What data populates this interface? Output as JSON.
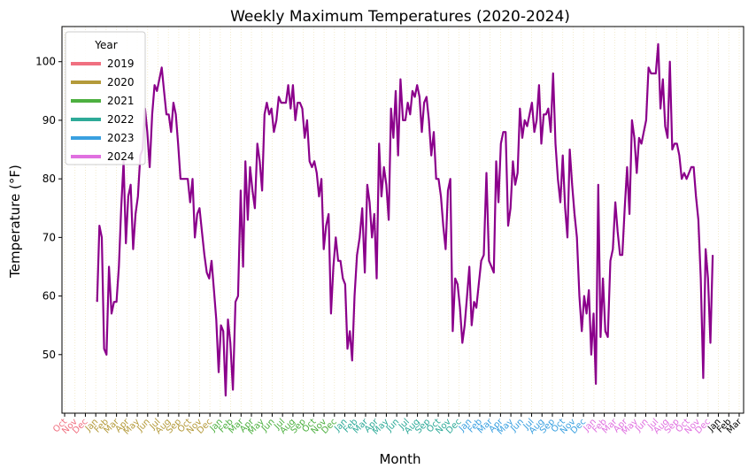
{
  "chart_data": {
    "type": "line",
    "title": "Weekly Maximum Temperatures (2020-2024)",
    "xlabel": "Month",
    "ylabel": "Temperature (°F)",
    "ylim": [
      40,
      106
    ],
    "yticks": [
      50,
      60,
      70,
      80,
      90,
      100
    ],
    "grid": "x-only (faint, dotted)",
    "line_color": "#8b008b",
    "legend": {
      "title": "Year",
      "placement": "top-left",
      "entries": [
        {
          "label": "2019",
          "color": "#f07080"
        },
        {
          "label": "2020",
          "color": "#b49a3a"
        },
        {
          "label": "2021",
          "color": "#4db040"
        },
        {
          "label": "2022",
          "color": "#2eaa98"
        },
        {
          "label": "2023",
          "color": "#3aa0e0"
        },
        {
          "label": "2024",
          "color": "#e070e0"
        }
      ]
    },
    "x_ticks": [
      {
        "label": "Oct",
        "year": "2019"
      },
      {
        "label": "Nov",
        "year": "2019"
      },
      {
        "label": "Dec",
        "year": "2019"
      },
      {
        "label": "Jan",
        "year": "2020"
      },
      {
        "label": "Feb",
        "year": "2020"
      },
      {
        "label": "Mar",
        "year": "2020"
      },
      {
        "label": "Apr",
        "year": "2020"
      },
      {
        "label": "May",
        "year": "2020"
      },
      {
        "label": "Jun",
        "year": "2020"
      },
      {
        "label": "Jul",
        "year": "2020"
      },
      {
        "label": "Aug",
        "year": "2020"
      },
      {
        "label": "Sep",
        "year": "2020"
      },
      {
        "label": "Oct",
        "year": "2020"
      },
      {
        "label": "Nov",
        "year": "2020"
      },
      {
        "label": "Dec",
        "year": "2020"
      },
      {
        "label": "Jan",
        "year": "2021"
      },
      {
        "label": "Feb",
        "year": "2021"
      },
      {
        "label": "Mar",
        "year": "2021"
      },
      {
        "label": "Apr",
        "year": "2021"
      },
      {
        "label": "May",
        "year": "2021"
      },
      {
        "label": "Jun",
        "year": "2021"
      },
      {
        "label": "Jul",
        "year": "2021"
      },
      {
        "label": "Aug",
        "year": "2021"
      },
      {
        "label": "Sep",
        "year": "2021"
      },
      {
        "label": "Oct",
        "year": "2021"
      },
      {
        "label": "Nov",
        "year": "2021"
      },
      {
        "label": "Dec",
        "year": "2021"
      },
      {
        "label": "Jan",
        "year": "2022"
      },
      {
        "label": "Feb",
        "year": "2022"
      },
      {
        "label": "Mar",
        "year": "2022"
      },
      {
        "label": "Apr",
        "year": "2022"
      },
      {
        "label": "May",
        "year": "2022"
      },
      {
        "label": "Jun",
        "year": "2022"
      },
      {
        "label": "Jul",
        "year": "2022"
      },
      {
        "label": "Aug",
        "year": "2022"
      },
      {
        "label": "Sep",
        "year": "2022"
      },
      {
        "label": "Oct",
        "year": "2022"
      },
      {
        "label": "Nov",
        "year": "2022"
      },
      {
        "label": "Dec",
        "year": "2022"
      },
      {
        "label": "Jan",
        "year": "2023"
      },
      {
        "label": "Feb",
        "year": "2023"
      },
      {
        "label": "Mar",
        "year": "2023"
      },
      {
        "label": "Apr",
        "year": "2023"
      },
      {
        "label": "May",
        "year": "2023"
      },
      {
        "label": "Jun",
        "year": "2023"
      },
      {
        "label": "Jul",
        "year": "2023"
      },
      {
        "label": "Aug",
        "year": "2023"
      },
      {
        "label": "Sep",
        "year": "2023"
      },
      {
        "label": "Oct",
        "year": "2023"
      },
      {
        "label": "Nov",
        "year": "2023"
      },
      {
        "label": "Dec",
        "year": "2023"
      },
      {
        "label": "Jan",
        "year": "2024"
      },
      {
        "label": "Feb",
        "year": "2024"
      },
      {
        "label": "Mar",
        "year": "2024"
      },
      {
        "label": "Apr",
        "year": "2024"
      },
      {
        "label": "May",
        "year": "2024"
      },
      {
        "label": "Jun",
        "year": "2024"
      },
      {
        "label": "Jul",
        "year": "2024"
      },
      {
        "label": "Aug",
        "year": "2024"
      },
      {
        "label": "Sep",
        "year": "2024"
      },
      {
        "label": "Oct",
        "year": "2024"
      },
      {
        "label": "Nov",
        "year": "2024"
      },
      {
        "label": "Dec",
        "year": "2024"
      },
      {
        "label": "Jan",
        "year": "2025"
      },
      {
        "label": "Feb",
        "year": "2025"
      },
      {
        "label": "Mar",
        "year": "2025"
      }
    ],
    "year_tick_colors": {
      "2019": "#f07080",
      "2020": "#b49a3a",
      "2021": "#4db040",
      "2022": "#2eaa98",
      "2023": "#3aa0e0",
      "2024": "#e070e0",
      "2025": "#000000"
    },
    "series": [
      {
        "color": "#8b008b",
        "x_start": "2020-01-05",
        "x_step_days": 7,
        "values": [
          59,
          72,
          70,
          51,
          50,
          65,
          57,
          59,
          59,
          65,
          75,
          83,
          69,
          77,
          79,
          68,
          74,
          77,
          84,
          85,
          92,
          88,
          82,
          91,
          96,
          95,
          97,
          99,
          95,
          91,
          91,
          88,
          93,
          91,
          86,
          80,
          80,
          80,
          80,
          76,
          80,
          70,
          74,
          75,
          71,
          67,
          64,
          63,
          66,
          61,
          56,
          47,
          55,
          54,
          43,
          56,
          52,
          44,
          59,
          60,
          78,
          65,
          83,
          73,
          82,
          78,
          75,
          86,
          83,
          78,
          91,
          93,
          91,
          92,
          88,
          90,
          94,
          93,
          93,
          93,
          96,
          92,
          96,
          90,
          93,
          93,
          92,
          87,
          90,
          83,
          82,
          83,
          81,
          77,
          80,
          68,
          72,
          74,
          57,
          65,
          70,
          66,
          66,
          63,
          62,
          51,
          54,
          49,
          60,
          67,
          70,
          75,
          64,
          79,
          76,
          70,
          74,
          63,
          86,
          77,
          82,
          79,
          73,
          92,
          87,
          95,
          84,
          97,
          90,
          90,
          93,
          91,
          95,
          94,
          96,
          94,
          88,
          93,
          94,
          90,
          84,
          88,
          80,
          80,
          77,
          72,
          68,
          78,
          80,
          54,
          63,
          62,
          58,
          52,
          55,
          60,
          65,
          55,
          59,
          58,
          62,
          66,
          67,
          81,
          66,
          65,
          64,
          83,
          76,
          86,
          88,
          88,
          72,
          75,
          83,
          79,
          81,
          92,
          87,
          90,
          89,
          91,
          93,
          88,
          90,
          96,
          86,
          91,
          91,
          92,
          88,
          98,
          86,
          80,
          76,
          84,
          75,
          70,
          85,
          79,
          74,
          70,
          60,
          54,
          60,
          57,
          61,
          50,
          57,
          45,
          79,
          53,
          63,
          54,
          53,
          66,
          68,
          76,
          71,
          67,
          67,
          75,
          82,
          74,
          90,
          87,
          81,
          87,
          86,
          88,
          90,
          99,
          98,
          98,
          98,
          103,
          92,
          97,
          89,
          87,
          100,
          85,
          86,
          86,
          84,
          80,
          81,
          80,
          81,
          82,
          82,
          77,
          73,
          63,
          46,
          68,
          63,
          52,
          67
        ]
      }
    ]
  }
}
